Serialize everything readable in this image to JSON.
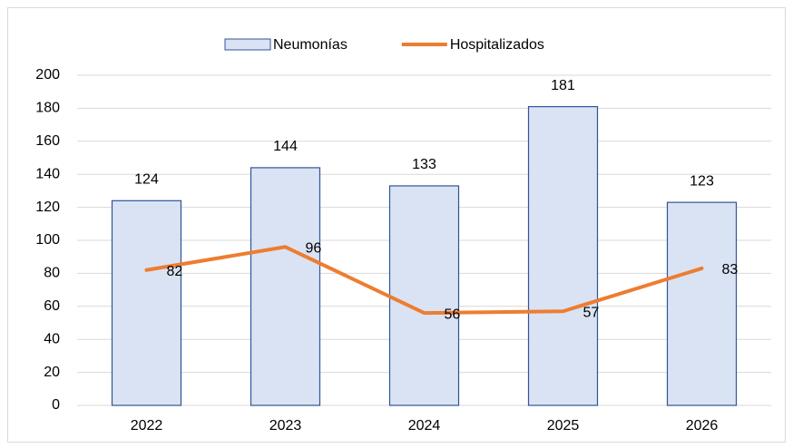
{
  "chart_data": {
    "type": "bar",
    "categories": [
      "2022",
      "2023",
      "2024",
      "2025",
      "2026"
    ],
    "series": [
      {
        "name": "Neumonías",
        "type": "bar",
        "color": "#dae3f3",
        "edge_color": "#2f5597",
        "values": [
          124,
          144,
          133,
          181,
          123
        ]
      },
      {
        "name": "Hospitalizados",
        "type": "line",
        "color": "#ed7d31",
        "values": [
          82,
          96,
          56,
          57,
          83
        ]
      }
    ],
    "ylim": [
      0,
      200
    ],
    "yticks": [
      0,
      20,
      40,
      60,
      80,
      100,
      120,
      140,
      160,
      180,
      200
    ],
    "grid": true,
    "legend": "top"
  }
}
